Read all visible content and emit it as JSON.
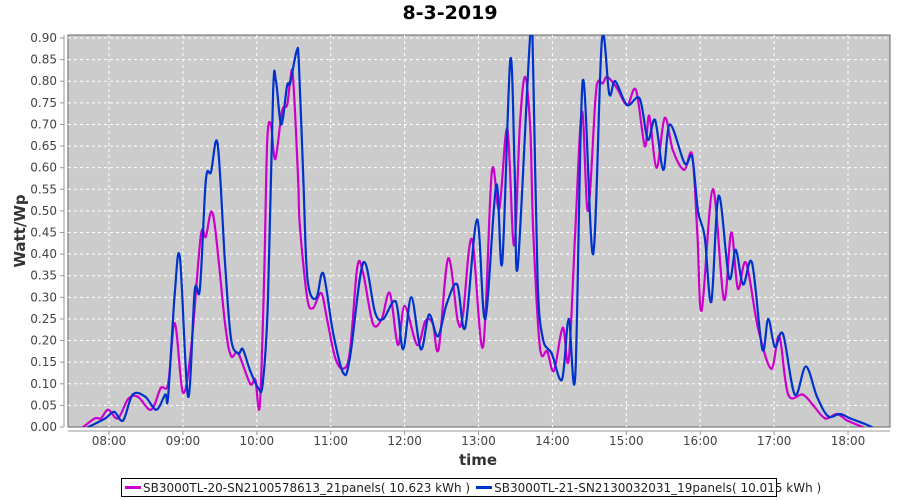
{
  "chart_data": {
    "type": "line",
    "title": "8-3-2019",
    "xlabel": "time",
    "ylabel": "Watt/Wp",
    "x_units": "hours of day",
    "xlim": [
      7.445,
      18.568
    ],
    "ylim": [
      0,
      0.907
    ],
    "grid": true,
    "legend_position": "bottom",
    "x_ticks": [
      {
        "value": 8,
        "label": "08:00"
      },
      {
        "value": 9,
        "label": "09:00"
      },
      {
        "value": 10,
        "label": "10:00"
      },
      {
        "value": 11,
        "label": "11:00"
      },
      {
        "value": 12,
        "label": "12:00"
      },
      {
        "value": 13,
        "label": "13:00"
      },
      {
        "value": 14,
        "label": "14:00"
      },
      {
        "value": 15,
        "label": "15:00"
      },
      {
        "value": 16,
        "label": "16:00"
      },
      {
        "value": 17,
        "label": "17:00"
      },
      {
        "value": 18,
        "label": "18:00"
      }
    ],
    "y_ticks": [
      "0.00",
      "0.05",
      "0.10",
      "0.15",
      "0.20",
      "0.25",
      "0.30",
      "0.35",
      "0.40",
      "0.45",
      "0.50",
      "0.55",
      "0.60",
      "0.65",
      "0.70",
      "0.75",
      "0.80",
      "0.85",
      "0.90"
    ],
    "series": [
      {
        "name": "SB3000TL-20-SN2100578613_21panels( 10.623 kWh )",
        "color": "#cc00cc",
        "points": [
          [
            7.65,
            0.0
          ],
          [
            7.81,
            0.02
          ],
          [
            7.89,
            0.02
          ],
          [
            7.99,
            0.04
          ],
          [
            8.12,
            0.02
          ],
          [
            8.26,
            0.065
          ],
          [
            8.39,
            0.07
          ],
          [
            8.57,
            0.04
          ],
          [
            8.7,
            0.09
          ],
          [
            8.8,
            0.1
          ],
          [
            8.89,
            0.24
          ],
          [
            9.0,
            0.08
          ],
          [
            9.11,
            0.18
          ],
          [
            9.24,
            0.44
          ],
          [
            9.31,
            0.44
          ],
          [
            9.41,
            0.49
          ],
          [
            9.57,
            0.24
          ],
          [
            9.65,
            0.165
          ],
          [
            9.75,
            0.17
          ],
          [
            9.91,
            0.1
          ],
          [
            9.98,
            0.11
          ],
          [
            10.04,
            0.05
          ],
          [
            10.1,
            0.35
          ],
          [
            10.14,
            0.66
          ],
          [
            10.19,
            0.7
          ],
          [
            10.25,
            0.62
          ],
          [
            10.34,
            0.73
          ],
          [
            10.41,
            0.745
          ],
          [
            10.45,
            0.8
          ],
          [
            10.49,
            0.81
          ],
          [
            10.56,
            0.57
          ],
          [
            10.58,
            0.47
          ],
          [
            10.68,
            0.3
          ],
          [
            10.76,
            0.275
          ],
          [
            10.87,
            0.31
          ],
          [
            10.95,
            0.25
          ],
          [
            11.06,
            0.16
          ],
          [
            11.17,
            0.135
          ],
          [
            11.26,
            0.175
          ],
          [
            11.36,
            0.37
          ],
          [
            11.44,
            0.355
          ],
          [
            11.57,
            0.24
          ],
          [
            11.69,
            0.25
          ],
          [
            11.8,
            0.31
          ],
          [
            11.91,
            0.19
          ],
          [
            12.0,
            0.28
          ],
          [
            12.17,
            0.19
          ],
          [
            12.28,
            0.245
          ],
          [
            12.38,
            0.24
          ],
          [
            12.46,
            0.18
          ],
          [
            12.59,
            0.39
          ],
          [
            12.72,
            0.245
          ],
          [
            12.79,
            0.26
          ],
          [
            12.91,
            0.435
          ],
          [
            13.06,
            0.185
          ],
          [
            13.18,
            0.59
          ],
          [
            13.28,
            0.505
          ],
          [
            13.39,
            0.69
          ],
          [
            13.48,
            0.42
          ],
          [
            13.56,
            0.7
          ],
          [
            13.63,
            0.81
          ],
          [
            13.7,
            0.69
          ],
          [
            13.74,
            0.455
          ],
          [
            13.83,
            0.185
          ],
          [
            13.93,
            0.175
          ],
          [
            14.02,
            0.13
          ],
          [
            14.14,
            0.23
          ],
          [
            14.22,
            0.155
          ],
          [
            14.31,
            0.455
          ],
          [
            14.4,
            0.73
          ],
          [
            14.48,
            0.5
          ],
          [
            14.58,
            0.755
          ],
          [
            14.62,
            0.8
          ],
          [
            14.68,
            0.795
          ],
          [
            14.74,
            0.81
          ],
          [
            14.87,
            0.785
          ],
          [
            15.01,
            0.745
          ],
          [
            15.13,
            0.78
          ],
          [
            15.25,
            0.65
          ],
          [
            15.31,
            0.72
          ],
          [
            15.41,
            0.6
          ],
          [
            15.52,
            0.715
          ],
          [
            15.63,
            0.64
          ],
          [
            15.78,
            0.595
          ],
          [
            15.89,
            0.63
          ],
          [
            15.96,
            0.45
          ],
          [
            16.02,
            0.27
          ],
          [
            16.17,
            0.55
          ],
          [
            16.32,
            0.295
          ],
          [
            16.42,
            0.45
          ],
          [
            16.51,
            0.32
          ],
          [
            16.62,
            0.38
          ],
          [
            16.78,
            0.23
          ],
          [
            16.96,
            0.135
          ],
          [
            17.07,
            0.21
          ],
          [
            17.19,
            0.075
          ],
          [
            17.39,
            0.075
          ],
          [
            17.53,
            0.05
          ],
          [
            17.69,
            0.02
          ],
          [
            17.85,
            0.03
          ],
          [
            17.99,
            0.015
          ],
          [
            18.2,
            0.0
          ]
        ]
      },
      {
        "name": "SB3000TL-21-SN2130032031_19panels( 10.015 kWh )",
        "color": "#0033cc",
        "points": [
          [
            7.72,
            0.0
          ],
          [
            7.95,
            0.02
          ],
          [
            8.07,
            0.035
          ],
          [
            8.19,
            0.015
          ],
          [
            8.32,
            0.075
          ],
          [
            8.49,
            0.07
          ],
          [
            8.64,
            0.04
          ],
          [
            8.76,
            0.075
          ],
          [
            8.8,
            0.07
          ],
          [
            8.89,
            0.31
          ],
          [
            8.96,
            0.39
          ],
          [
            9.07,
            0.07
          ],
          [
            9.16,
            0.315
          ],
          [
            9.23,
            0.32
          ],
          [
            9.31,
            0.57
          ],
          [
            9.38,
            0.59
          ],
          [
            9.47,
            0.655
          ],
          [
            9.57,
            0.38
          ],
          [
            9.65,
            0.205
          ],
          [
            9.75,
            0.17
          ],
          [
            9.81,
            0.18
          ],
          [
            9.91,
            0.13
          ],
          [
            10.02,
            0.09
          ],
          [
            10.08,
            0.1
          ],
          [
            10.15,
            0.29
          ],
          [
            10.22,
            0.775
          ],
          [
            10.26,
            0.8
          ],
          [
            10.33,
            0.7
          ],
          [
            10.41,
            0.79
          ],
          [
            10.45,
            0.795
          ],
          [
            10.54,
            0.87
          ],
          [
            10.57,
            0.84
          ],
          [
            10.63,
            0.57
          ],
          [
            10.67,
            0.38
          ],
          [
            10.72,
            0.31
          ],
          [
            10.81,
            0.3
          ],
          [
            10.9,
            0.355
          ],
          [
            11.03,
            0.22
          ],
          [
            11.17,
            0.125
          ],
          [
            11.26,
            0.16
          ],
          [
            11.44,
            0.38
          ],
          [
            11.6,
            0.265
          ],
          [
            11.71,
            0.25
          ],
          [
            11.88,
            0.29
          ],
          [
            11.98,
            0.18
          ],
          [
            12.09,
            0.3
          ],
          [
            12.22,
            0.18
          ],
          [
            12.33,
            0.26
          ],
          [
            12.45,
            0.21
          ],
          [
            12.57,
            0.285
          ],
          [
            12.71,
            0.33
          ],
          [
            12.82,
            0.23
          ],
          [
            12.98,
            0.48
          ],
          [
            13.09,
            0.25
          ],
          [
            13.24,
            0.56
          ],
          [
            13.32,
            0.38
          ],
          [
            13.43,
            0.85
          ],
          [
            13.49,
            0.59
          ],
          [
            13.53,
            0.37
          ],
          [
            13.7,
            0.91
          ],
          [
            13.74,
            0.825
          ],
          [
            13.8,
            0.34
          ],
          [
            13.87,
            0.205
          ],
          [
            13.99,
            0.17
          ],
          [
            14.13,
            0.11
          ],
          [
            14.22,
            0.25
          ],
          [
            14.31,
            0.12
          ],
          [
            14.41,
            0.8
          ],
          [
            14.55,
            0.4
          ],
          [
            14.67,
            0.895
          ],
          [
            14.77,
            0.77
          ],
          [
            14.85,
            0.8
          ],
          [
            15.01,
            0.745
          ],
          [
            15.18,
            0.76
          ],
          [
            15.29,
            0.665
          ],
          [
            15.39,
            0.71
          ],
          [
            15.5,
            0.595
          ],
          [
            15.59,
            0.7
          ],
          [
            15.79,
            0.61
          ],
          [
            15.89,
            0.625
          ],
          [
            15.97,
            0.5
          ],
          [
            16.06,
            0.44
          ],
          [
            16.15,
            0.29
          ],
          [
            16.25,
            0.535
          ],
          [
            16.39,
            0.345
          ],
          [
            16.48,
            0.41
          ],
          [
            16.58,
            0.33
          ],
          [
            16.7,
            0.38
          ],
          [
            16.84,
            0.18
          ],
          [
            16.92,
            0.25
          ],
          [
            17.01,
            0.185
          ],
          [
            17.12,
            0.215
          ],
          [
            17.28,
            0.075
          ],
          [
            17.43,
            0.14
          ],
          [
            17.58,
            0.07
          ],
          [
            17.73,
            0.025
          ],
          [
            17.89,
            0.03
          ],
          [
            18.03,
            0.02
          ],
          [
            18.23,
            0.007
          ],
          [
            18.32,
            0.0
          ]
        ]
      }
    ]
  }
}
